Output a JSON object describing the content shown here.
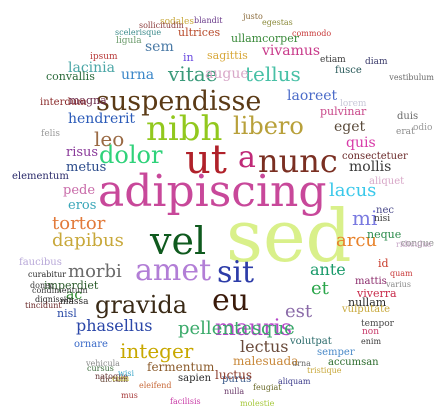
{
  "words": [
    {
      "text": "sed",
      "color": "#d9f08a"
    },
    {
      "text": "adipiscing",
      "color": "#c8489a"
    },
    {
      "text": "ut",
      "color": "#b0212a"
    },
    {
      "text": "nunc",
      "color": "#7a2f22"
    },
    {
      "text": "a",
      "color": "#c02a78"
    },
    {
      "text": "vel",
      "color": "#0f5a1e"
    },
    {
      "text": "nibh",
      "color": "#92c81e"
    },
    {
      "text": "suspendisse",
      "color": "#5a3a16"
    },
    {
      "text": "amet",
      "color": "#b27ed6"
    },
    {
      "text": "sit",
      "color": "#2d3ca8"
    },
    {
      "text": "eu",
      "color": "#3a1a0a"
    },
    {
      "text": "gravida",
      "color": "#3a2a16"
    },
    {
      "text": "dolor",
      "color": "#2fd27a"
    },
    {
      "text": "libero",
      "color": "#b8a03a"
    },
    {
      "text": "lacus",
      "color": "#3ac8ea"
    },
    {
      "text": "tellus",
      "color": "#48c0a6"
    },
    {
      "text": "vitae",
      "color": "#3a9a7a"
    },
    {
      "text": "leo",
      "color": "#9a6a44"
    },
    {
      "text": "mi",
      "color": "#7a7ae0"
    },
    {
      "text": "morbi",
      "color": "#6a6a6a"
    },
    {
      "text": "dapibus",
      "color": "#c8a83a"
    },
    {
      "text": "tortor",
      "color": "#e27a3a"
    },
    {
      "text": "arcu",
      "color": "#e8822a"
    },
    {
      "text": "mauris",
      "color": "#b446c8"
    },
    {
      "text": "integer",
      "color": "#c8a800"
    },
    {
      "text": "pellentesque",
      "color": "#3aaa6a"
    },
    {
      "text": "phasellus",
      "color": "#2a46a8"
    },
    {
      "text": "lectus",
      "color": "#6a4a3a"
    },
    {
      "text": "est",
      "color": "#8a6aa8"
    },
    {
      "text": "et",
      "color": "#2aa64a"
    },
    {
      "text": "ante",
      "color": "#1a9a6a"
    },
    {
      "text": "augue",
      "color": "#d8a8c8"
    },
    {
      "text": "sem",
      "color": "#4a7aa6"
    },
    {
      "text": "urna",
      "color": "#3a86c8"
    },
    {
      "text": "lacinia",
      "color": "#4aa6a6"
    },
    {
      "text": "hendrerit",
      "color": "#2a5ab8"
    },
    {
      "text": "laoreet",
      "color": "#4a6ac8"
    },
    {
      "text": "vivamus",
      "color": "#c83a8a"
    },
    {
      "text": "eget",
      "color": "#5a4a3a"
    },
    {
      "text": "quis",
      "color": "#d83aa8"
    },
    {
      "text": "mollis",
      "color": "#3a3a3a"
    },
    {
      "text": "risus",
      "color": "#8a3a9a"
    },
    {
      "text": "metus",
      "color": "#2a4a8a"
    },
    {
      "text": "pede",
      "color": "#c86aa8"
    },
    {
      "text": "eros",
      "color": "#3aa6b8"
    },
    {
      "text": "ac",
      "color": "#2a8a2a"
    },
    {
      "text": "fermentum",
      "color": "#8a5a2a"
    },
    {
      "text": "sagittis",
      "color": "#d8a83a"
    },
    {
      "text": "ullamcorper",
      "color": "#3a8a3a"
    },
    {
      "text": "ultrices",
      "color": "#b84a2a"
    },
    {
      "text": "magna",
      "color": "#6a2a4a"
    },
    {
      "text": "convallis",
      "color": "#2a6a3a"
    },
    {
      "text": "interdum",
      "color": "#8a2a2a"
    },
    {
      "text": "elementum",
      "color": "#2a2a6a"
    },
    {
      "text": "felis",
      "color": "#9a9a9a"
    },
    {
      "text": "in",
      "color": "#6a4ae0"
    },
    {
      "text": "nullam",
      "color": "#2a2a2a"
    },
    {
      "text": "viverra",
      "color": "#c82a4a"
    },
    {
      "text": "vulputate",
      "color": "#c8a83a"
    },
    {
      "text": "volutpat",
      "color": "#2a6a6a"
    },
    {
      "text": "malesuada",
      "color": "#c8883a"
    },
    {
      "text": "semper",
      "color": "#4a8ac8"
    },
    {
      "text": "accumsan",
      "color": "#2a6a2a"
    },
    {
      "text": "purus",
      "color": "#3a5a8a"
    },
    {
      "text": "sapien",
      "color": "#2a2a2a"
    },
    {
      "text": "luctus",
      "color": "#8a3a2a"
    },
    {
      "text": "nisl",
      "color": "#2a4aa6"
    },
    {
      "text": "imperdiet",
      "color": "#2a5a2a"
    },
    {
      "text": "pulvinar",
      "color": "#c8488a"
    },
    {
      "text": "consectetuer",
      "color": "#6a2a2a"
    },
    {
      "text": "aliquet",
      "color": "#d8a8c8"
    },
    {
      "text": "fusce",
      "color": "#2a5a5a"
    },
    {
      "text": "etiam",
      "color": "#3a3a3a"
    },
    {
      "text": "faucibus",
      "color": "#b8a8d8"
    },
    {
      "text": "mattis",
      "color": "#8a2a6a"
    },
    {
      "text": "ornare",
      "color": "#3a6ac8"
    },
    {
      "text": "lorem",
      "color": "#c8c8d8"
    },
    {
      "text": "neque",
      "color": "#2a8a4a"
    },
    {
      "text": "nisi",
      "color": "#3a3a3a"
    },
    {
      "text": "id",
      "color": "#c83a2a"
    },
    {
      "text": "nec",
      "color": "#4a4a8a"
    },
    {
      "text": "duis",
      "color": "#6a6a6a"
    },
    {
      "text": "erat",
      "color": "#8a8a8a"
    },
    {
      "text": "sodales",
      "color": "#c8a83a"
    },
    {
      "text": "ipsum",
      "color": "#b83a3a"
    },
    {
      "text": "ligula",
      "color": "#6a9a6a"
    },
    {
      "text": "diam",
      "color": "#3a3a6a"
    },
    {
      "text": "justo",
      "color": "#8a6a3a"
    },
    {
      "text": "egestas",
      "color": "#8a8a3a"
    },
    {
      "text": "commodo",
      "color": "#c83a3a"
    },
    {
      "text": "blandit",
      "color": "#6a3a8a"
    },
    {
      "text": "odio",
      "color": "#9a9a9a"
    },
    {
      "text": "massa",
      "color": "#2a2a2a"
    },
    {
      "text": "curabitur",
      "color": "#2a2a2a"
    },
    {
      "text": "donec",
      "color": "#3a3a3a"
    },
    {
      "text": "cursus",
      "color": "#3a6a3a"
    },
    {
      "text": "varius",
      "color": "#8a8a8a"
    },
    {
      "text": "vestibulum",
      "color": "#6a6a6a"
    },
    {
      "text": "dictum",
      "color": "#6a4a3a"
    },
    {
      "text": "congue",
      "color": "#8a8a8a"
    },
    {
      "text": "tempor",
      "color": "#4a4a4a"
    },
    {
      "text": "nulla",
      "color": "#6a3a6a"
    },
    {
      "text": "dignissim",
      "color": "#2a2a2a"
    },
    {
      "text": "condimentum",
      "color": "#3a3a3a"
    },
    {
      "text": "tincidunt",
      "color": "#6a2a2a"
    },
    {
      "text": "non",
      "color": "#c83a6a"
    },
    {
      "text": "feugiat",
      "color": "#6a6a2a"
    },
    {
      "text": "aliquam",
      "color": "#3a3a8a"
    },
    {
      "text": "sollicitudin",
      "color": "#8a3a3a"
    },
    {
      "text": "scelerisque",
      "color": "#3a8a8a"
    },
    {
      "text": "cum",
      "color": "#c8c83a"
    },
    {
      "text": "eleifend",
      "color": "#c86a3a"
    },
    {
      "text": "natoque",
      "color": "#6a3a3a"
    },
    {
      "text": "wisi",
      "color": "#3aa6c8"
    },
    {
      "text": "facilisis",
      "color": "#c83aa6"
    },
    {
      "text": "ridiculus",
      "color": "#c8a8c8"
    },
    {
      "text": "quam",
      "color": "#c83a3a"
    },
    {
      "text": "enim",
      "color": "#3a3a3a"
    },
    {
      "text": "molestie",
      "color": "#a6c83a"
    },
    {
      "text": "urna",
      "color": "#6a6a6a"
    },
    {
      "text": "tristique",
      "color": "#c8a83a"
    },
    {
      "text": "vehicula",
      "color": "#8a8a8a"
    },
    {
      "text": "mus",
      "color": "#a63a3a"
    }
  ]
}
